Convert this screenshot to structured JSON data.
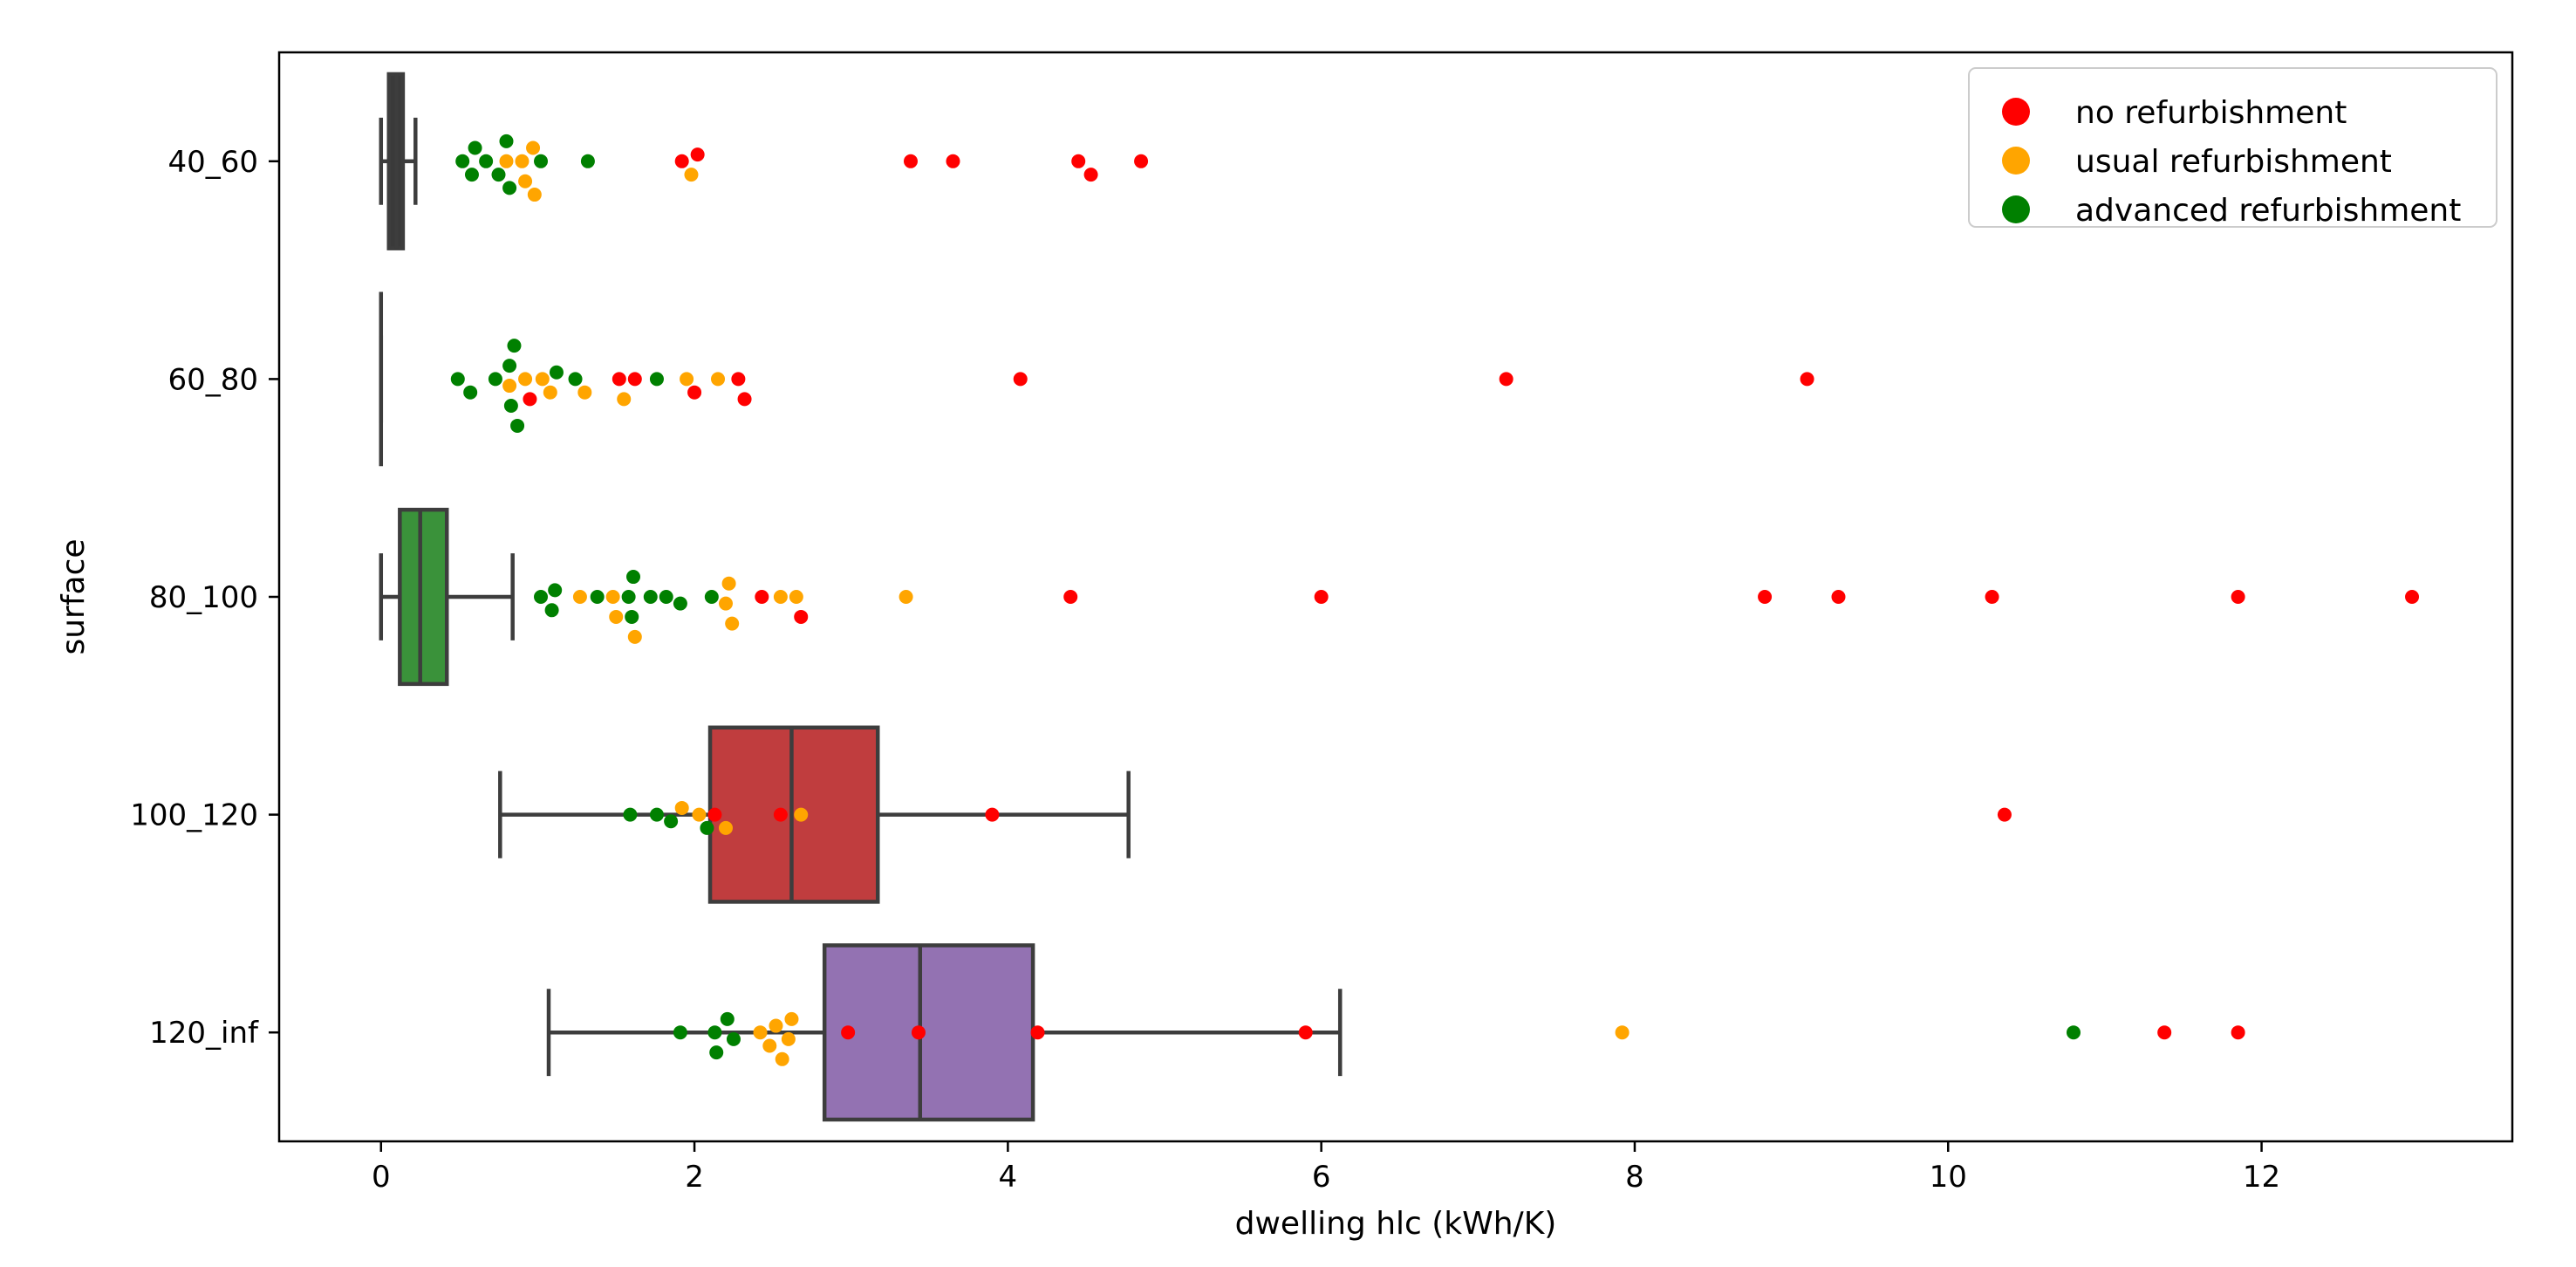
{
  "chart_data": {
    "type": "boxplot-swarm",
    "orientation": "horizontal",
    "xlabel": "dwelling hlc (kWh/K)",
    "ylabel": "surface",
    "xlim": [
      -0.65,
      13.6
    ],
    "xticks": [
      0,
      2,
      4,
      6,
      8,
      10,
      12
    ],
    "categories": [
      "40_60",
      "60_80",
      "80_100",
      "100_120",
      "120_inf"
    ],
    "box_colors": [
      "#3a3a3a",
      "#3a3a3a",
      "#3a923a",
      "#c03d3e",
      "#9372b2"
    ],
    "line_color": "#3d3d3d",
    "boxes": [
      {
        "category": "40_60",
        "whisker_low": 0.0,
        "q1": 0.05,
        "median": 0.1,
        "q3": 0.14,
        "whisker_high": 0.22
      },
      {
        "category": "60_80",
        "whisker_low": 0.0,
        "q1": 0.0,
        "median": 0.0,
        "q3": 0.0,
        "whisker_high": 0.0
      },
      {
        "category": "80_100",
        "whisker_low": 0.0,
        "q1": 0.12,
        "median": 0.25,
        "q3": 0.42,
        "whisker_high": 0.84
      },
      {
        "category": "100_120",
        "whisker_low": 0.76,
        "q1": 2.1,
        "median": 2.62,
        "q3": 3.17,
        "whisker_high": 4.77
      },
      {
        "category": "120_inf",
        "whisker_low": 1.07,
        "q1": 2.83,
        "median": 3.44,
        "q3": 4.16,
        "whisker_high": 6.12
      }
    ],
    "series": [
      {
        "name": "no refurbishment",
        "color": "#ff0000",
        "points": [
          {
            "category": "40_60",
            "values": [
              1.92,
              2.02,
              3.38,
              3.65,
              4.45,
              4.53,
              4.85
            ]
          },
          {
            "category": "60_80",
            "values": [
              0.95,
              1.52,
              1.62,
              2.0,
              2.28,
              2.32,
              4.08,
              7.18,
              9.1
            ]
          },
          {
            "category": "80_100",
            "values": [
              2.43,
              2.68,
              4.4,
              6.0,
              8.83,
              9.3,
              10.28,
              11.85,
              12.96
            ]
          },
          {
            "category": "100_120",
            "values": [
              2.13,
              2.55,
              3.9,
              10.36
            ]
          },
          {
            "category": "120_inf",
            "values": [
              2.98,
              3.43,
              4.19,
              5.9,
              11.38,
              11.85
            ]
          }
        ]
      },
      {
        "name": "usual refurbishment",
        "color": "#ffa500",
        "points": [
          {
            "category": "40_60",
            "values": [
              0.8,
              0.9,
              0.92,
              0.97,
              0.98,
              1.98
            ]
          },
          {
            "category": "60_80",
            "values": [
              0.82,
              0.92,
              1.03,
              1.08,
              1.3,
              1.55,
              1.95,
              2.15
            ]
          },
          {
            "category": "80_100",
            "values": [
              1.27,
              1.48,
              1.5,
              1.62,
              2.2,
              2.22,
              2.24,
              2.55,
              2.65,
              3.35
            ]
          },
          {
            "category": "100_120",
            "values": [
              1.92,
              2.03,
              2.2,
              2.68
            ]
          },
          {
            "category": "120_inf",
            "values": [
              2.42,
              2.48,
              2.52,
              2.56,
              2.6,
              2.62,
              7.92
            ]
          }
        ]
      },
      {
        "name": "advanced refurbishment",
        "color": "#008000",
        "points": [
          {
            "category": "40_60",
            "values": [
              0.52,
              0.58,
              0.6,
              0.67,
              0.75,
              0.8,
              0.82,
              1.02,
              1.32
            ]
          },
          {
            "category": "60_80",
            "values": [
              0.49,
              0.57,
              0.73,
              0.82,
              0.83,
              0.85,
              0.87,
              1.12,
              1.24,
              1.76
            ]
          },
          {
            "category": "80_100",
            "values": [
              1.02,
              1.09,
              1.11,
              1.38,
              1.58,
              1.6,
              1.61,
              1.72,
              1.82,
              1.91,
              2.11
            ]
          },
          {
            "category": "100_120",
            "values": [
              1.59,
              1.76,
              1.85,
              2.08
            ]
          },
          {
            "category": "120_inf",
            "values": [
              1.91,
              2.13,
              2.14,
              2.21,
              2.25,
              10.8
            ]
          }
        ]
      }
    ],
    "legend": {
      "position": "top-right",
      "entries": [
        "no refurbishment",
        "usual refurbishment",
        "advanced refurbishment"
      ]
    }
  }
}
